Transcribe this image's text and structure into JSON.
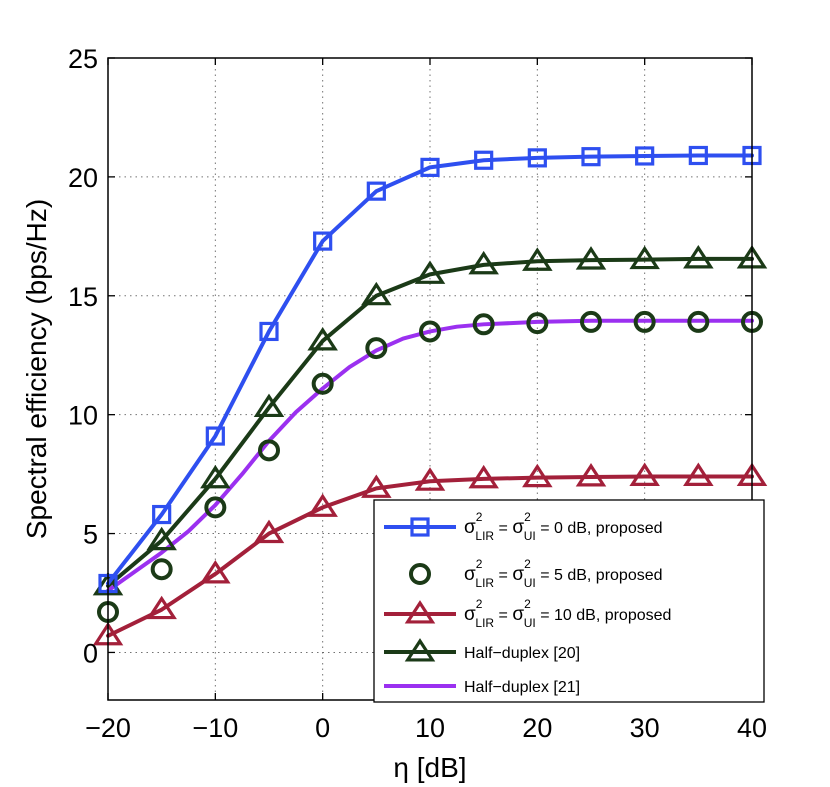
{
  "chart_data": {
    "type": "line",
    "title": "",
    "xlabel": "η [dB]",
    "ylabel": "Spectral efficiency (bps/Hz)",
    "xlim": [
      -20,
      40
    ],
    "ylim": [
      -2,
      25
    ],
    "xticks": [
      -20,
      -10,
      0,
      10,
      20,
      30,
      40
    ],
    "xtick_labels": [
      "−20",
      "−10",
      "0",
      "10",
      "20",
      "30",
      "40"
    ],
    "yticks": [
      0,
      5,
      10,
      15,
      20,
      25
    ],
    "ytick_labels": [
      "0",
      "5",
      "10",
      "15",
      "20",
      "25"
    ],
    "grid": true,
    "legend_position": "bottom-right",
    "series": [
      {
        "name": "proposed_0dB",
        "legend": {
          "sym": "σ",
          "sup": "2",
          "sub_a": "LIR",
          "sub_b": "UI",
          "rest": " = 0 dB, proposed"
        },
        "color": "#2e4ff0",
        "marker": "square",
        "line": true,
        "x": [
          -20,
          -15,
          -10,
          -5,
          0,
          5,
          10,
          15,
          20,
          25,
          30,
          35,
          40
        ],
        "y": [
          2.9,
          5.8,
          9.1,
          13.5,
          17.3,
          19.4,
          20.4,
          20.7,
          20.8,
          20.85,
          20.88,
          20.9,
          20.9
        ]
      },
      {
        "name": "proposed_5dB",
        "legend": {
          "sym": "σ",
          "sup": "2",
          "sub_a": "LIR",
          "sub_b": "UI",
          "rest": " = 5 dB, proposed"
        },
        "color": "#1b3a17",
        "marker": "circle",
        "line": false,
        "x": [
          -20,
          -15,
          -10,
          -5,
          0,
          5,
          10,
          15,
          20,
          25,
          30,
          35,
          40
        ],
        "y": [
          1.7,
          3.5,
          6.1,
          8.5,
          11.3,
          12.8,
          13.5,
          13.8,
          13.85,
          13.9,
          13.9,
          13.9,
          13.9
        ]
      },
      {
        "name": "proposed_10dB",
        "legend": {
          "sym": "σ",
          "sup": "2",
          "sub_a": "LIR",
          "sub_b": "UI",
          "rest": " = 10 dB, proposed"
        },
        "color": "#a3203a",
        "marker": "triangle",
        "line": true,
        "x": [
          -20,
          -15,
          -10,
          -5,
          0,
          5,
          10,
          15,
          20,
          25,
          30,
          35,
          40
        ],
        "y": [
          0.7,
          1.8,
          3.3,
          5.0,
          6.1,
          6.9,
          7.2,
          7.3,
          7.35,
          7.38,
          7.4,
          7.4,
          7.4
        ]
      },
      {
        "name": "half_duplex_20",
        "legend": {
          "text": "Half−duplex [20]"
        },
        "color": "#1b3a17",
        "marker": "triangle",
        "line": true,
        "x": [
          -20,
          -15,
          -10,
          -5,
          0,
          5,
          10,
          15,
          20,
          25,
          30,
          35,
          40
        ],
        "y": [
          2.8,
          4.7,
          7.3,
          10.3,
          13.1,
          15.0,
          15.9,
          16.3,
          16.45,
          16.5,
          16.52,
          16.55,
          16.55
        ]
      },
      {
        "name": "half_duplex_21",
        "legend": {
          "text": "Half−duplex [21]"
        },
        "color": "#9b30f0",
        "marker": "none",
        "line": true,
        "x": [
          -20,
          -17.5,
          -15,
          -12.5,
          -10,
          -7.5,
          -5,
          -2.5,
          0,
          2.5,
          5,
          7.5,
          10,
          12.5,
          15,
          20,
          25,
          30,
          35,
          40
        ],
        "y": [
          2.6,
          3.4,
          4.2,
          5.1,
          6.2,
          7.5,
          8.9,
          10.1,
          11.1,
          12.0,
          12.7,
          13.2,
          13.5,
          13.7,
          13.8,
          13.9,
          13.95,
          13.95,
          13.95,
          13.95
        ]
      }
    ]
  }
}
